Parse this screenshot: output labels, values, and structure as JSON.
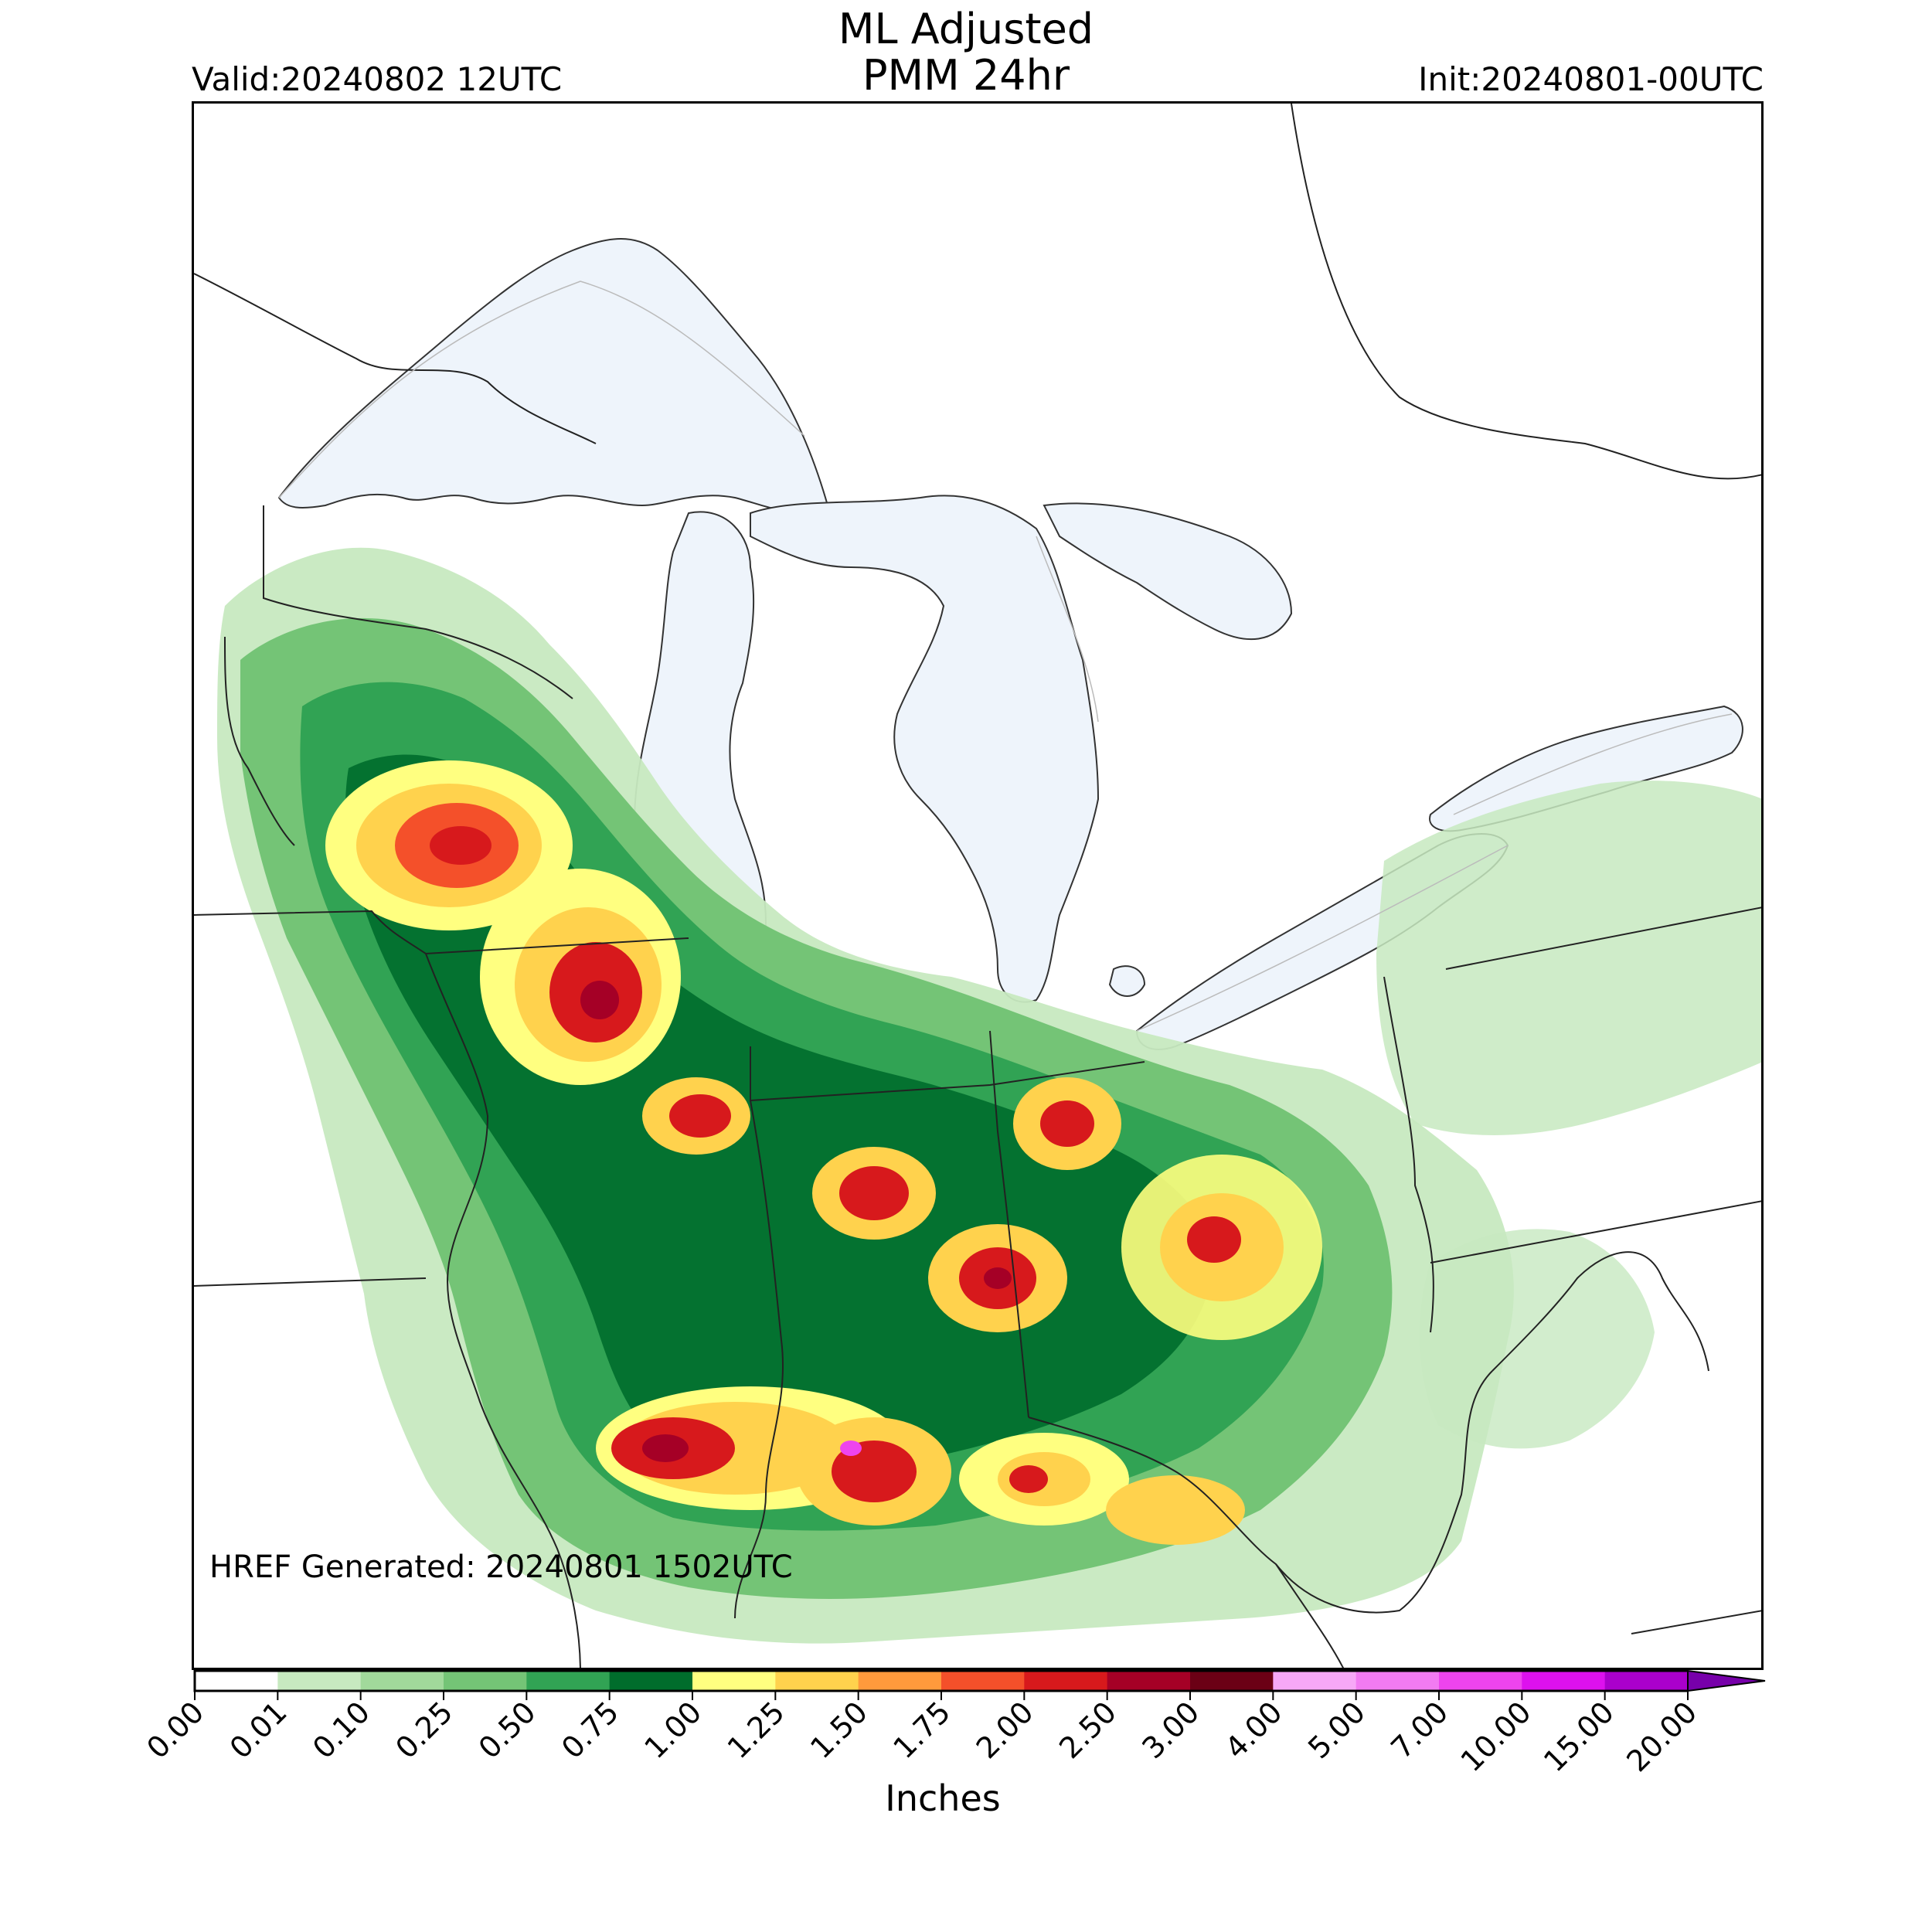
{
  "title_line1": "ML Adjusted",
  "title_line2": "PMM 24hr",
  "valid_text": "Valid:20240802 12UTC",
  "init_text": "Init:20240801-00UTC",
  "href_text": "HREF Generated: 20240801 1502UTC",
  "colorbar": {
    "label": "Inches",
    "extend": "max",
    "levels": [
      "0.00",
      "0.01",
      "0.10",
      "0.25",
      "0.50",
      "0.75",
      "1.00",
      "1.25",
      "1.50",
      "1.75",
      "2.00",
      "2.50",
      "3.00",
      "4.00",
      "5.00",
      "7.00",
      "10.00",
      "15.00",
      "20.00"
    ],
    "colors": [
      "#ffffff",
      "#c7e9c0",
      "#a1d99b",
      "#74c476",
      "#31a354",
      "#006d2c",
      "#ffff80",
      "#ffd24d",
      "#ff9a3c",
      "#f4502a",
      "#d7191c",
      "#a50026",
      "#6b0015",
      "#f7a8f7",
      "#f27bf2",
      "#ee44ee",
      "#dd11ee",
      "#aa00cc",
      "#7700aa"
    ]
  },
  "map": {
    "lake_fill": "#eef4fb",
    "region": "Upper Midwest and Great Lakes"
  }
}
